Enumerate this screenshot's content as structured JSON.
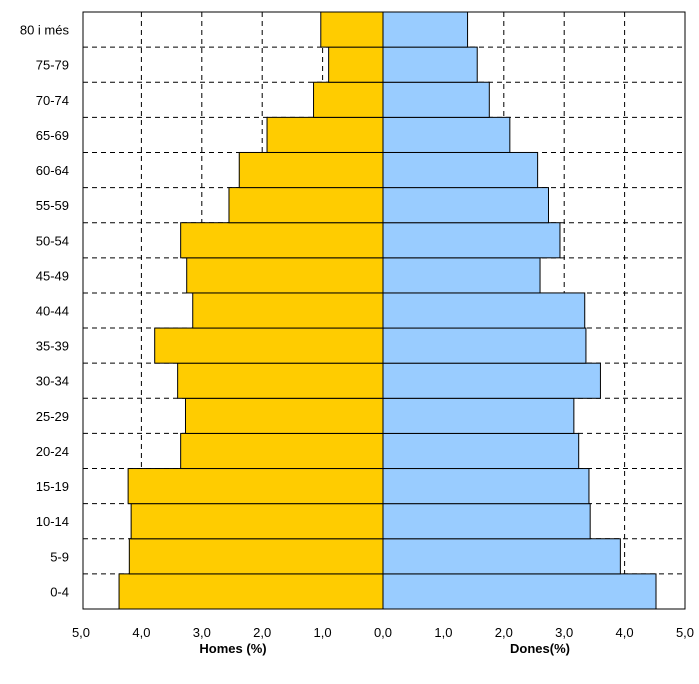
{
  "chart_data": {
    "type": "bar",
    "orientation": "horizontal",
    "layout": "population-pyramid",
    "categories": [
      "0-4",
      "5-9",
      "10-14",
      "15-19",
      "20-24",
      "25-29",
      "30-34",
      "35-39",
      "40-44",
      "45-49",
      "50-54",
      "55-59",
      "60-64",
      "65-69",
      "70-74",
      "75-79",
      "80 i més"
    ],
    "series": [
      {
        "name": "Homes (%)",
        "side": "left",
        "color": "#FFCC00",
        "values": [
          4.37,
          4.2,
          4.17,
          4.22,
          3.35,
          3.27,
          3.4,
          3.78,
          3.15,
          3.25,
          3.35,
          2.55,
          2.38,
          1.92,
          1.15,
          0.9,
          1.03
        ]
      },
      {
        "name": "Dones(%)",
        "side": "right",
        "color": "#99CCFF",
        "values": [
          4.52,
          3.93,
          3.43,
          3.41,
          3.24,
          3.16,
          3.6,
          3.36,
          3.34,
          2.6,
          2.93,
          2.74,
          2.56,
          2.1,
          1.76,
          1.56,
          1.4
        ]
      }
    ],
    "xlim": [
      -5,
      5
    ],
    "xticks": [
      {
        "value": -5,
        "label": "5,0",
        "color": "#FF0000"
      },
      {
        "value": -4,
        "label": "4,0",
        "color": "#FF0000"
      },
      {
        "value": -3,
        "label": "3,0",
        "color": "#FF0000"
      },
      {
        "value": -2,
        "label": "2,0",
        "color": "#FF0000"
      },
      {
        "value": -1,
        "label": "1,0",
        "color": "#FF0000"
      },
      {
        "value": 0,
        "label": "0,0",
        "color": "#000000"
      },
      {
        "value": 1,
        "label": "1,0",
        "color": "#000000"
      },
      {
        "value": 2,
        "label": "2,0",
        "color": "#000000"
      },
      {
        "value": 3,
        "label": "3,0",
        "color": "#000000"
      },
      {
        "value": 4,
        "label": "4,0",
        "color": "#000000"
      },
      {
        "value": 5,
        "label": "5,0",
        "color": "#000000"
      }
    ],
    "left_axis_title": "Homes (%)",
    "right_axis_title": "Dones(%)",
    "grid": "dashed",
    "legend": "none"
  }
}
